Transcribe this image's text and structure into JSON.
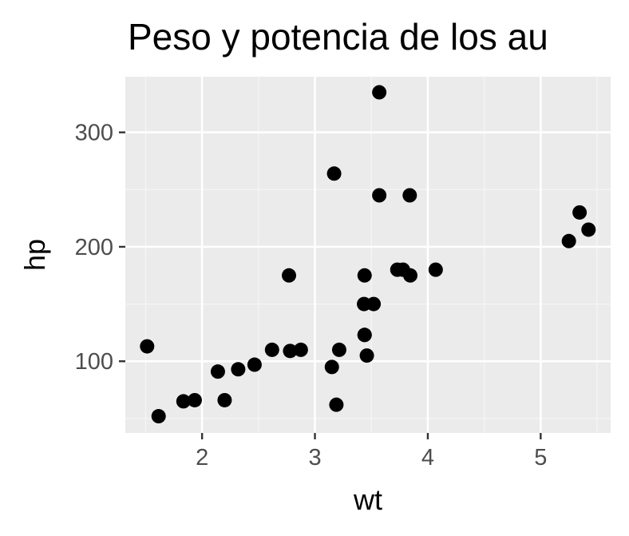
{
  "chart_data": {
    "type": "scatter",
    "title": "Peso y potencia de los au",
    "xlabel": "wt",
    "ylabel": "hp",
    "xlim": [
      1.32,
      5.62
    ],
    "ylim": [
      37.35,
      348.65
    ],
    "xticks": [
      2,
      3,
      4,
      5
    ],
    "xtick_labels": [
      "2",
      "3",
      "4",
      "5"
    ],
    "yticks": [
      100,
      200,
      300
    ],
    "ytick_labels": [
      "100",
      "200",
      "300"
    ],
    "grid": true,
    "legend": "none",
    "colors": {
      "panel": "#ebebeb",
      "grid_major": "#ffffff",
      "grid_minor": "#f5f5f5",
      "point": "#000000",
      "tick": "#333333",
      "tick_label": "#4d4d4d"
    },
    "points": [
      {
        "x": 2.62,
        "y": 110
      },
      {
        "x": 2.875,
        "y": 110
      },
      {
        "x": 2.32,
        "y": 93
      },
      {
        "x": 3.215,
        "y": 110
      },
      {
        "x": 3.44,
        "y": 175
      },
      {
        "x": 3.46,
        "y": 105
      },
      {
        "x": 3.57,
        "y": 245
      },
      {
        "x": 3.19,
        "y": 62
      },
      {
        "x": 3.15,
        "y": 95
      },
      {
        "x": 3.44,
        "y": 123
      },
      {
        "x": 3.44,
        "y": 123
      },
      {
        "x": 4.07,
        "y": 180
      },
      {
        "x": 3.73,
        "y": 180
      },
      {
        "x": 3.78,
        "y": 180
      },
      {
        "x": 5.25,
        "y": 205
      },
      {
        "x": 5.424,
        "y": 215
      },
      {
        "x": 5.345,
        "y": 230
      },
      {
        "x": 2.2,
        "y": 66
      },
      {
        "x": 1.615,
        "y": 52
      },
      {
        "x": 1.835,
        "y": 65
      },
      {
        "x": 2.465,
        "y": 97
      },
      {
        "x": 3.52,
        "y": 150
      },
      {
        "x": 3.435,
        "y": 150
      },
      {
        "x": 3.84,
        "y": 245
      },
      {
        "x": 3.845,
        "y": 175
      },
      {
        "x": 1.935,
        "y": 66
      },
      {
        "x": 2.14,
        "y": 91
      },
      {
        "x": 1.513,
        "y": 113
      },
      {
        "x": 3.17,
        "y": 264
      },
      {
        "x": 2.77,
        "y": 175
      },
      {
        "x": 3.57,
        "y": 335
      },
      {
        "x": 2.78,
        "y": 109
      }
    ]
  }
}
